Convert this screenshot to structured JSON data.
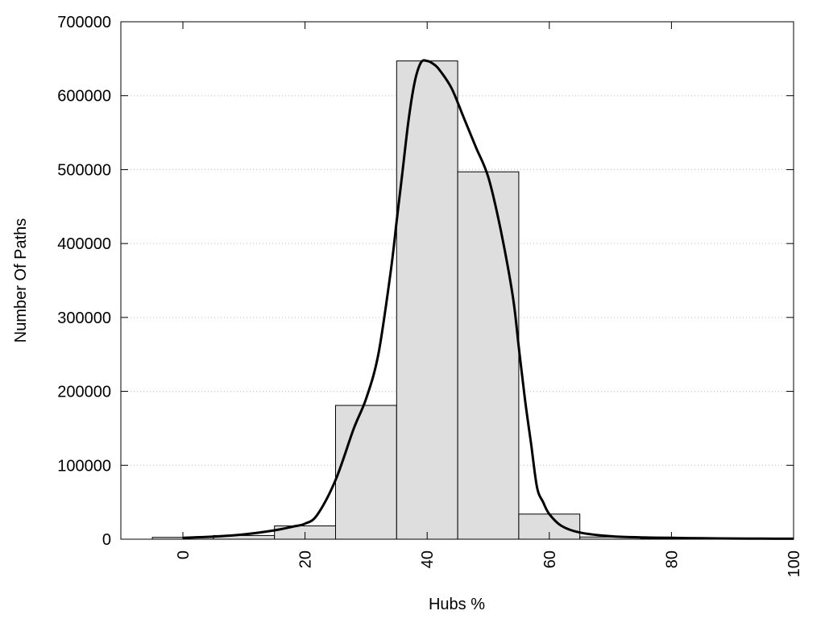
{
  "chart_data": {
    "type": "bar",
    "xlabel": "Hubs %",
    "ylabel": "Number Of Paths",
    "xlim": [
      -10,
      100
    ],
    "ylim": [
      0,
      700000
    ],
    "grid": "horizontal dotted",
    "x_ticks": [
      0,
      20,
      40,
      60,
      80,
      100
    ],
    "y_ticks": [
      0,
      100000,
      200000,
      300000,
      400000,
      500000,
      600000,
      700000
    ],
    "bin_width": 10,
    "histogram": {
      "bin_centers": [
        0,
        10,
        20,
        30,
        40,
        50,
        60,
        70,
        80,
        90,
        100
      ],
      "values": [
        2500,
        5000,
        18000,
        181000,
        647000,
        497000,
        34000,
        3000,
        1000,
        300,
        100
      ]
    },
    "fit_curve": {
      "x": [
        0,
        5,
        10,
        15,
        18,
        20,
        22,
        25,
        28,
        30,
        32,
        34,
        35,
        36,
        37,
        38,
        39,
        40,
        41,
        42,
        44,
        46,
        48,
        50,
        52,
        54,
        55,
        56,
        57,
        58,
        59,
        60,
        62,
        65,
        70,
        75,
        80,
        85,
        90,
        95,
        100
      ],
      "y": [
        2000,
        3500,
        6500,
        12000,
        17000,
        21000,
        33000,
        80000,
        150000,
        190000,
        250000,
        360000,
        430000,
        500000,
        570000,
        620000,
        645000,
        647000,
        643000,
        635000,
        610000,
        570000,
        530000,
        490000,
        420000,
        330000,
        260000,
        190000,
        130000,
        70000,
        50000,
        34000,
        18000,
        9000,
        4000,
        2500,
        1800,
        1300,
        1000,
        800,
        600
      ]
    },
    "colors": {
      "bar_fill": "#dedede",
      "bar_stroke": "#000000",
      "curve": "#000000",
      "grid": "#bdbdbd"
    }
  }
}
